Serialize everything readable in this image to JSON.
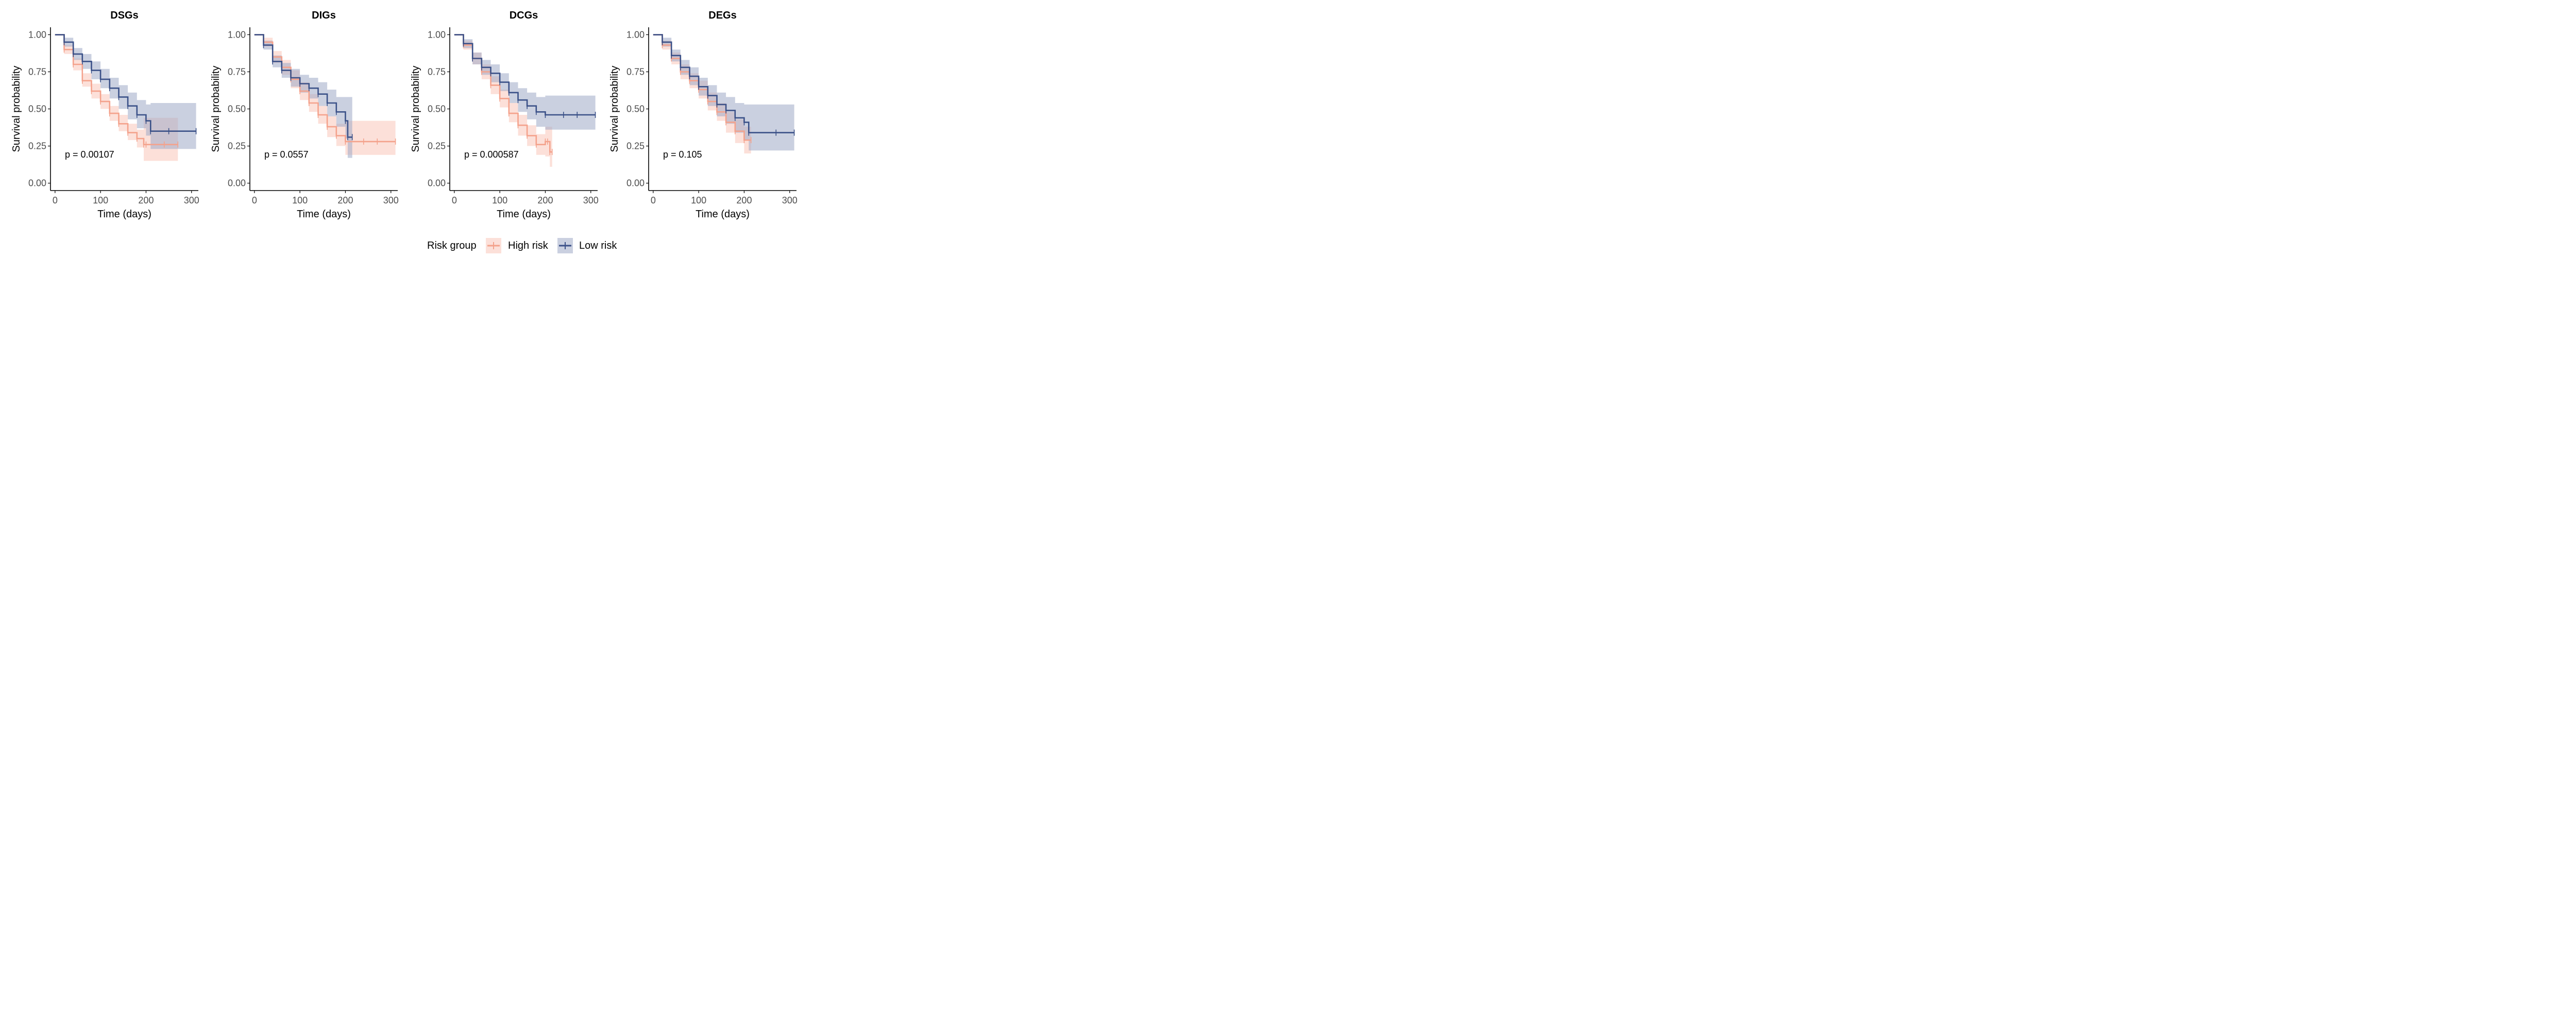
{
  "colors": {
    "high_risk": "#F4A28C",
    "low_risk": "#3B5188",
    "high_risk_band": "#F9C7B9",
    "low_risk_band": "#9FAAC7",
    "axis": "#000000",
    "tick_label": "#4d4d4d"
  },
  "legend": {
    "title": "Risk group",
    "placement": "bottom-right",
    "items": [
      "High risk",
      "Low risk"
    ]
  },
  "chart_data": [
    {
      "type": "line",
      "subtype": "kaplan-meier",
      "title": "DSGs",
      "xlabel": "Time (days)",
      "ylabel": "Survival probability",
      "xlim": [
        -10,
        315
      ],
      "ylim": [
        -0.05,
        1.05
      ],
      "xticks": [
        0,
        100,
        200,
        300
      ],
      "yticks": [
        "0.00",
        "0.25",
        "0.50",
        "0.75",
        "1.00"
      ],
      "annotation": "p = 0.00107",
      "series": [
        {
          "name": "High risk",
          "x": [
            0,
            20,
            40,
            60,
            80,
            100,
            120,
            140,
            160,
            180,
            195,
            200,
            240,
            270
          ],
          "y": [
            1.0,
            0.9,
            0.8,
            0.69,
            0.62,
            0.55,
            0.47,
            0.4,
            0.34,
            0.3,
            0.26,
            0.26,
            0.26,
            0.26
          ],
          "lower": [
            1.0,
            0.87,
            0.76,
            0.65,
            0.57,
            0.5,
            0.42,
            0.35,
            0.29,
            0.24,
            0.15,
            0.15,
            0.15,
            0.15
          ],
          "upper": [
            1.0,
            0.93,
            0.84,
            0.74,
            0.67,
            0.6,
            0.52,
            0.46,
            0.4,
            0.36,
            0.44,
            0.44,
            0.44,
            0.44
          ]
        },
        {
          "name": "Low risk",
          "x": [
            0,
            20,
            40,
            60,
            80,
            100,
            120,
            140,
            160,
            180,
            200,
            210,
            250,
            310
          ],
          "y": [
            1.0,
            0.95,
            0.87,
            0.82,
            0.76,
            0.7,
            0.64,
            0.58,
            0.52,
            0.46,
            0.42,
            0.35,
            0.35,
            0.35
          ],
          "lower": [
            1.0,
            0.92,
            0.83,
            0.77,
            0.7,
            0.64,
            0.57,
            0.5,
            0.43,
            0.37,
            0.32,
            0.23,
            0.23,
            0.23
          ],
          "upper": [
            1.0,
            0.98,
            0.91,
            0.87,
            0.82,
            0.77,
            0.71,
            0.66,
            0.61,
            0.56,
            0.53,
            0.54,
            0.54,
            0.54
          ]
        }
      ]
    },
    {
      "type": "line",
      "subtype": "kaplan-meier",
      "title": "DIGs",
      "xlabel": "Time (days)",
      "ylabel": "Survival probability",
      "xlim": [
        -10,
        315
      ],
      "ylim": [
        -0.05,
        1.05
      ],
      "xticks": [
        0,
        100,
        200,
        300
      ],
      "yticks": [
        "0.00",
        "0.25",
        "0.50",
        "0.75",
        "1.00"
      ],
      "annotation": "p = 0.0557",
      "series": [
        {
          "name": "High risk",
          "x": [
            0,
            20,
            40,
            60,
            80,
            100,
            120,
            140,
            160,
            180,
            200,
            240,
            270,
            310
          ],
          "y": [
            1.0,
            0.95,
            0.85,
            0.78,
            0.7,
            0.62,
            0.54,
            0.46,
            0.38,
            0.32,
            0.28,
            0.28,
            0.28,
            0.28
          ],
          "lower": [
            1.0,
            0.92,
            0.81,
            0.73,
            0.64,
            0.56,
            0.48,
            0.4,
            0.31,
            0.25,
            0.19,
            0.19,
            0.19,
            0.19
          ],
          "upper": [
            1.0,
            0.98,
            0.89,
            0.83,
            0.76,
            0.68,
            0.6,
            0.52,
            0.45,
            0.4,
            0.42,
            0.42,
            0.42,
            0.42
          ]
        },
        {
          "name": "Low risk",
          "x": [
            0,
            20,
            40,
            60,
            80,
            100,
            120,
            140,
            160,
            180,
            200,
            205,
            215
          ],
          "y": [
            1.0,
            0.93,
            0.82,
            0.76,
            0.71,
            0.67,
            0.64,
            0.6,
            0.54,
            0.48,
            0.42,
            0.31,
            0.31
          ],
          "lower": [
            1.0,
            0.9,
            0.78,
            0.71,
            0.65,
            0.61,
            0.57,
            0.52,
            0.45,
            0.38,
            0.3,
            0.17,
            0.17
          ],
          "upper": [
            1.0,
            0.96,
            0.86,
            0.81,
            0.77,
            0.73,
            0.71,
            0.68,
            0.63,
            0.58,
            0.58,
            0.58,
            0.58
          ]
        }
      ]
    },
    {
      "type": "line",
      "subtype": "kaplan-meier",
      "title": "DCGs",
      "xlabel": "Time (days)",
      "ylabel": "Survival probability",
      "xlim": [
        -10,
        315
      ],
      "ylim": [
        -0.05,
        1.05
      ],
      "xticks": [
        0,
        100,
        200,
        300
      ],
      "yticks": [
        "0.00",
        "0.25",
        "0.50",
        "0.75",
        "1.00"
      ],
      "annotation": "p = 0.000587",
      "series": [
        {
          "name": "High risk",
          "x": [
            0,
            20,
            40,
            60,
            80,
            100,
            120,
            140,
            160,
            180,
            200,
            205,
            210,
            215
          ],
          "y": [
            1.0,
            0.93,
            0.84,
            0.75,
            0.66,
            0.57,
            0.47,
            0.39,
            0.32,
            0.26,
            0.28,
            0.28,
            0.21,
            0.21
          ],
          "lower": [
            1.0,
            0.9,
            0.8,
            0.7,
            0.6,
            0.51,
            0.41,
            0.32,
            0.25,
            0.19,
            0.18,
            0.18,
            0.11,
            0.11
          ],
          "upper": [
            1.0,
            0.96,
            0.88,
            0.8,
            0.72,
            0.63,
            0.54,
            0.46,
            0.39,
            0.33,
            0.38,
            0.38,
            0.38,
            0.38
          ]
        },
        {
          "name": "Low risk",
          "x": [
            0,
            20,
            40,
            60,
            80,
            100,
            120,
            140,
            160,
            180,
            200,
            240,
            270,
            310
          ],
          "y": [
            1.0,
            0.94,
            0.84,
            0.78,
            0.74,
            0.68,
            0.61,
            0.56,
            0.52,
            0.48,
            0.46,
            0.46,
            0.46,
            0.46
          ],
          "lower": [
            1.0,
            0.91,
            0.8,
            0.73,
            0.68,
            0.62,
            0.54,
            0.48,
            0.43,
            0.38,
            0.36,
            0.36,
            0.36,
            0.36
          ],
          "upper": [
            1.0,
            0.97,
            0.88,
            0.83,
            0.8,
            0.74,
            0.68,
            0.64,
            0.61,
            0.58,
            0.59,
            0.59,
            0.59,
            0.59
          ]
        }
      ]
    },
    {
      "type": "line",
      "subtype": "kaplan-meier",
      "title": "DEGs",
      "xlabel": "Time (days)",
      "ylabel": "Survival probability",
      "xlim": [
        -10,
        315
      ],
      "ylim": [
        -0.05,
        1.05
      ],
      "xticks": [
        0,
        100,
        200,
        300
      ],
      "yticks": [
        "0.00",
        "0.25",
        "0.50",
        "0.75",
        "1.00"
      ],
      "annotation": "p = 0.105",
      "series": [
        {
          "name": "High risk",
          "x": [
            0,
            20,
            40,
            60,
            80,
            100,
            120,
            140,
            160,
            180,
            200,
            215
          ],
          "y": [
            1.0,
            0.93,
            0.84,
            0.75,
            0.69,
            0.63,
            0.55,
            0.48,
            0.41,
            0.35,
            0.29,
            0.29
          ],
          "lower": [
            1.0,
            0.9,
            0.8,
            0.7,
            0.64,
            0.57,
            0.49,
            0.42,
            0.34,
            0.27,
            0.2,
            0.2
          ],
          "upper": [
            1.0,
            0.96,
            0.88,
            0.8,
            0.74,
            0.69,
            0.61,
            0.54,
            0.48,
            0.43,
            0.38,
            0.38
          ]
        },
        {
          "name": "Low risk",
          "x": [
            0,
            20,
            40,
            60,
            80,
            100,
            120,
            140,
            160,
            180,
            200,
            210,
            270,
            310
          ],
          "y": [
            1.0,
            0.95,
            0.86,
            0.78,
            0.72,
            0.65,
            0.59,
            0.53,
            0.49,
            0.44,
            0.41,
            0.34,
            0.34,
            0.34
          ],
          "lower": [
            1.0,
            0.92,
            0.82,
            0.73,
            0.66,
            0.59,
            0.52,
            0.45,
            0.4,
            0.34,
            0.29,
            0.22,
            0.22,
            0.22
          ],
          "upper": [
            1.0,
            0.98,
            0.9,
            0.83,
            0.78,
            0.71,
            0.66,
            0.61,
            0.58,
            0.54,
            0.53,
            0.53,
            0.53,
            0.53
          ]
        }
      ]
    }
  ]
}
